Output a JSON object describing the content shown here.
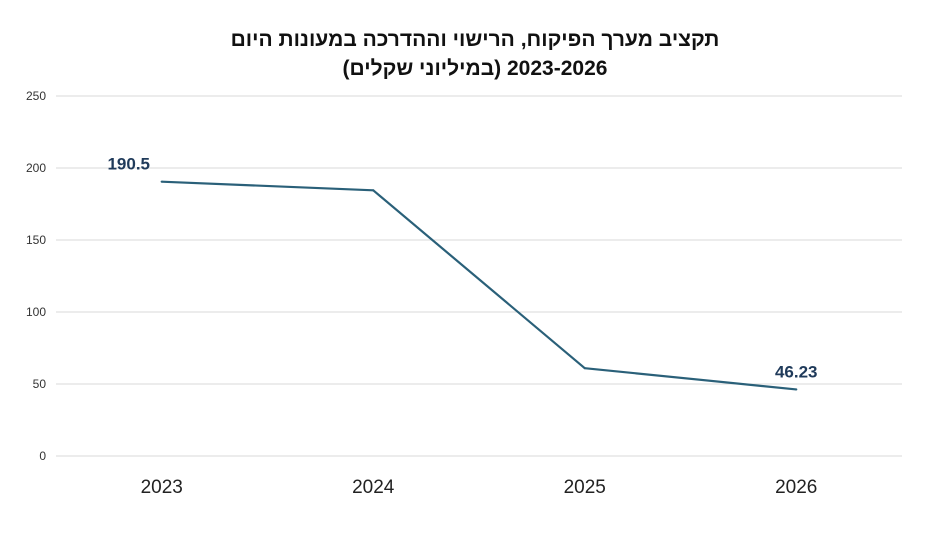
{
  "chart_data": {
    "type": "line",
    "title_lines": [
      "תקציב מערך הפיקוח, הרישוי וההדרכה במעונות היום",
      "2023-2026 (במיליוני שקלים)"
    ],
    "xlabel": "",
    "ylabel": "",
    "categories": [
      "2023",
      "2024",
      "2025",
      "2026"
    ],
    "series": [
      {
        "values": [
          190.5,
          184.5,
          61,
          46.23
        ],
        "color": "#2a6079"
      }
    ],
    "data_labels": [
      {
        "index": 0,
        "text": "190.5"
      },
      {
        "index": 3,
        "text": "46.23"
      }
    ],
    "ylim": [
      0,
      250
    ],
    "yticks": [
      0,
      50,
      100,
      150,
      200,
      250
    ],
    "grid": true,
    "legend": "none",
    "label_color": "#1f3a5a",
    "grid_color": "#d9d9d9"
  }
}
